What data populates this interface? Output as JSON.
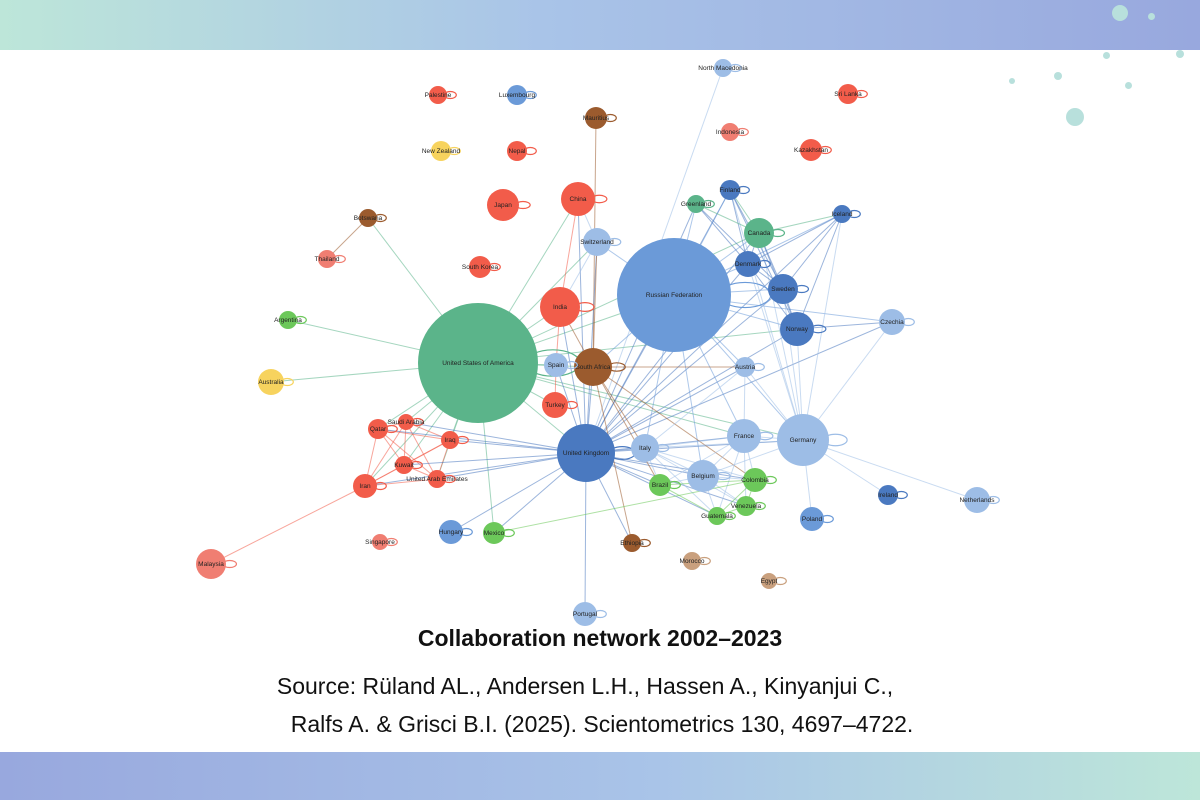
{
  "caption": {
    "title": "Collaboration network 2002–2023",
    "source_line1": "Source: Rüland AL., Andersen L.H., Hassen A., Kinyanjui C.,",
    "source_line2": "Ralfs A. & Grisci B.I. (2025). Scientometrics 130, 4697–4722."
  },
  "colors": {
    "red": "#f25c4a",
    "salmon": "#f07e72",
    "green": "#5bb48a",
    "lime": "#6cc85a",
    "brown": "#9b5b2e",
    "tan": "#c9a07e",
    "yellow": "#f7d35e",
    "blue_dark": "#4a79c0",
    "blue": "#6b9ad8",
    "blue_light": "#9dbde6",
    "band_top": [
      "#bde6d9",
      "#98a8de"
    ],
    "band_bottom": [
      "#98a8de",
      "#bde6d9"
    ]
  },
  "network": {
    "nodes": [
      {
        "id": "usa",
        "label": "United States of America",
        "color": "green"
      },
      {
        "id": "russia",
        "label": "Russian Federation",
        "color": "blue"
      },
      {
        "id": "uk",
        "label": "United Kingdom",
        "color": "blue_dark"
      },
      {
        "id": "germany",
        "label": "Germany",
        "color": "blue_light"
      },
      {
        "id": "southafrica",
        "label": "South Africa",
        "color": "brown"
      },
      {
        "id": "china",
        "label": "China",
        "color": "red"
      },
      {
        "id": "japan",
        "label": "Japan",
        "color": "red"
      },
      {
        "id": "india",
        "label": "India",
        "color": "red"
      },
      {
        "id": "norway",
        "label": "Norway",
        "color": "blue_dark"
      },
      {
        "id": "sweden",
        "label": "Sweden",
        "color": "blue_dark"
      },
      {
        "id": "canada",
        "label": "Canada",
        "color": "green"
      },
      {
        "id": "france",
        "label": "France",
        "color": "blue_light"
      },
      {
        "id": "belgium",
        "label": "Belgium",
        "color": "blue_light"
      },
      {
        "id": "italy",
        "label": "Italy",
        "color": "blue_light"
      },
      {
        "id": "spain",
        "label": "Spain",
        "color": "blue_light"
      },
      {
        "id": "turkey",
        "label": "Turkey",
        "color": "red"
      },
      {
        "id": "switzerland",
        "label": "Switzerland",
        "color": "blue_light"
      },
      {
        "id": "denmark",
        "label": "Denmark",
        "color": "blue_dark"
      },
      {
        "id": "finland",
        "label": "Finland",
        "color": "blue_dark"
      },
      {
        "id": "iceland",
        "label": "Iceland",
        "color": "blue_dark"
      },
      {
        "id": "greenland",
        "label": "Greenland",
        "color": "green"
      },
      {
        "id": "czechia",
        "label": "Czechia",
        "color": "blue_light"
      },
      {
        "id": "austria",
        "label": "Austria",
        "color": "blue_light"
      },
      {
        "id": "netherlands",
        "label": "Netherlands",
        "color": "blue_light"
      },
      {
        "id": "ireland",
        "label": "Ireland",
        "color": "blue_dark"
      },
      {
        "id": "poland",
        "label": "Poland",
        "color": "blue"
      },
      {
        "id": "colombia",
        "label": "Colombia",
        "color": "lime"
      },
      {
        "id": "brazil",
        "label": "Brazil",
        "color": "lime"
      },
      {
        "id": "venezuela",
        "label": "Venezuela",
        "color": "lime"
      },
      {
        "id": "guatemala",
        "label": "Guatemala",
        "color": "lime"
      },
      {
        "id": "mexico",
        "label": "Mexico",
        "color": "lime"
      },
      {
        "id": "argentina",
        "label": "Argentina",
        "color": "lime"
      },
      {
        "id": "hungary",
        "label": "Hungary",
        "color": "blue"
      },
      {
        "id": "ethiopia",
        "label": "Ethiopia",
        "color": "brown"
      },
      {
        "id": "morocco",
        "label": "Morocco",
        "color": "tan"
      },
      {
        "id": "egypt",
        "label": "Egypt",
        "color": "tan"
      },
      {
        "id": "portugal",
        "label": "Portugal",
        "color": "blue_light"
      },
      {
        "id": "iran",
        "label": "Iran",
        "color": "red"
      },
      {
        "id": "malaysia",
        "label": "Malaysia",
        "color": "salmon"
      },
      {
        "id": "singapore",
        "label": "Singapore",
        "color": "salmon"
      },
      {
        "id": "qatar",
        "label": "Qatar",
        "color": "red"
      },
      {
        "id": "saudiarabia",
        "label": "Saudi Arabia",
        "color": "red"
      },
      {
        "id": "iraq",
        "label": "Iraq",
        "color": "red"
      },
      {
        "id": "kuwait",
        "label": "Kuwait",
        "color": "red"
      },
      {
        "id": "uae",
        "label": "United Arab Emirates",
        "color": "red"
      },
      {
        "id": "australia",
        "label": "Australia",
        "color": "yellow"
      },
      {
        "id": "newzealand",
        "label": "New Zealand",
        "color": "yellow"
      },
      {
        "id": "thailand",
        "label": "Thailand",
        "color": "salmon"
      },
      {
        "id": "botswana",
        "label": "Botswana",
        "color": "brown"
      },
      {
        "id": "southkorea",
        "label": "South Korea",
        "color": "red"
      },
      {
        "id": "nepal",
        "label": "Nepal",
        "color": "red"
      },
      {
        "id": "palestine",
        "label": "Palestine",
        "color": "red"
      },
      {
        "id": "luxembourg",
        "label": "Luxembourg",
        "color": "blue"
      },
      {
        "id": "mauritius",
        "label": "Mauritius",
        "color": "brown"
      },
      {
        "id": "indonesia",
        "label": "Indonesia",
        "color": "salmon"
      },
      {
        "id": "northmacedonia",
        "label": "North Macedonia",
        "color": "blue_light"
      },
      {
        "id": "srilanka",
        "label": "Sri Lanka",
        "color": "red"
      },
      {
        "id": "kazakhstan",
        "label": "Kazakhstan",
        "color": "red"
      }
    ],
    "edges": [
      [
        "usa",
        "uk"
      ],
      [
        "usa",
        "russia"
      ],
      [
        "usa",
        "china"
      ],
      [
        "usa",
        "india"
      ],
      [
        "usa",
        "southafrica"
      ],
      [
        "usa",
        "spain"
      ],
      [
        "usa",
        "argentina"
      ],
      [
        "usa",
        "australia"
      ],
      [
        "usa",
        "botswana"
      ],
      [
        "usa",
        "mexico"
      ],
      [
        "usa",
        "iran"
      ],
      [
        "usa",
        "qatar"
      ],
      [
        "usa",
        "saudiarabia"
      ],
      [
        "usa",
        "iraq"
      ],
      [
        "usa",
        "kuwait"
      ],
      [
        "usa",
        "uae"
      ],
      [
        "usa",
        "turkey"
      ],
      [
        "usa",
        "switzerland"
      ],
      [
        "usa",
        "germany"
      ],
      [
        "usa",
        "canada"
      ],
      [
        "usa",
        "norway"
      ],
      [
        "usa",
        "france"
      ],
      [
        "botswana",
        "thailand"
      ],
      [
        "mauritius",
        "southafrica"
      ],
      [
        "northmacedonia",
        "uk"
      ],
      [
        "iran",
        "malaysia"
      ],
      [
        "iran",
        "qatar"
      ],
      [
        "iran",
        "saudiarabia"
      ],
      [
        "iran",
        "iraq"
      ],
      [
        "iran",
        "kuwait"
      ],
      [
        "iran",
        "uae"
      ],
      [
        "qatar",
        "saudiarabia"
      ],
      [
        "qatar",
        "iraq"
      ],
      [
        "qatar",
        "kuwait"
      ],
      [
        "qatar",
        "uae"
      ],
      [
        "saudiarabia",
        "kuwait"
      ],
      [
        "saudiarabia",
        "uae"
      ],
      [
        "saudiarabia",
        "iraq"
      ],
      [
        "iraq",
        "uae"
      ],
      [
        "kuwait",
        "uae"
      ],
      [
        "iraq",
        "kuwait"
      ],
      [
        "uk",
        "qatar"
      ],
      [
        "uk",
        "saudiarabia"
      ],
      [
        "uk",
        "iraq"
      ],
      [
        "uk",
        "kuwait"
      ],
      [
        "uk",
        "uae"
      ],
      [
        "uk",
        "iran"
      ],
      [
        "uk",
        "russia"
      ],
      [
        "uk",
        "southafrica"
      ],
      [
        "uk",
        "germany"
      ],
      [
        "uk",
        "france"
      ],
      [
        "uk",
        "italy"
      ],
      [
        "uk",
        "belgium"
      ],
      [
        "uk",
        "norway"
      ],
      [
        "uk",
        "sweden"
      ],
      [
        "uk",
        "denmark"
      ],
      [
        "uk",
        "canada"
      ],
      [
        "uk",
        "colombia"
      ],
      [
        "uk",
        "brazil"
      ],
      [
        "uk",
        "venezuela"
      ],
      [
        "uk",
        "guatemala"
      ],
      [
        "uk",
        "hungary"
      ],
      [
        "uk",
        "portugal"
      ],
      [
        "uk",
        "ethiopia"
      ],
      [
        "uk",
        "mexico"
      ],
      [
        "uk",
        "switzerland"
      ],
      [
        "uk",
        "spain"
      ],
      [
        "uk",
        "india"
      ],
      [
        "uk",
        "china"
      ],
      [
        "uk",
        "austria"
      ],
      [
        "uk",
        "finland"
      ],
      [
        "uk",
        "iceland"
      ],
      [
        "uk",
        "greenland"
      ],
      [
        "uk",
        "czechia"
      ],
      [
        "russia",
        "germany"
      ],
      [
        "russia",
        "norway"
      ],
      [
        "russia",
        "sweden"
      ],
      [
        "russia",
        "denmark"
      ],
      [
        "russia",
        "canada"
      ],
      [
        "russia",
        "finland"
      ],
      [
        "russia",
        "iceland"
      ],
      [
        "russia",
        "greenland"
      ],
      [
        "russia",
        "switzerland"
      ],
      [
        "russia",
        "france"
      ],
      [
        "russia",
        "austria"
      ],
      [
        "russia",
        "czechia"
      ],
      [
        "russia",
        "southafrica"
      ],
      [
        "russia",
        "italy"
      ],
      [
        "russia",
        "belgium"
      ],
      [
        "southafrica",
        "brazil"
      ],
      [
        "southafrica",
        "colombia"
      ],
      [
        "southafrica",
        "ethiopia"
      ],
      [
        "southafrica",
        "italy"
      ],
      [
        "southafrica",
        "austria"
      ],
      [
        "southafrica",
        "switzerland"
      ],
      [
        "southafrica",
        "india"
      ],
      [
        "germany",
        "netherlands"
      ],
      [
        "germany",
        "ireland"
      ],
      [
        "germany",
        "poland"
      ],
      [
        "germany",
        "france"
      ],
      [
        "germany",
        "norway"
      ],
      [
        "germany",
        "sweden"
      ],
      [
        "germany",
        "italy"
      ],
      [
        "germany",
        "belgium"
      ],
      [
        "germany",
        "czechia"
      ],
      [
        "germany",
        "iceland"
      ],
      [
        "germany",
        "finland"
      ],
      [
        "germany",
        "canada"
      ],
      [
        "germany",
        "austria"
      ],
      [
        "germany",
        "denmark"
      ],
      [
        "italy",
        "brazil"
      ],
      [
        "italy",
        "colombia"
      ],
      [
        "italy",
        "venezuela"
      ],
      [
        "italy",
        "guatemala"
      ],
      [
        "italy",
        "belgium"
      ],
      [
        "italy",
        "france"
      ],
      [
        "belgium",
        "colombia"
      ],
      [
        "belgium",
        "brazil"
      ],
      [
        "belgium",
        "venezuela"
      ],
      [
        "belgium",
        "guatemala"
      ],
      [
        "france",
        "colombia"
      ],
      [
        "france",
        "venezuela"
      ],
      [
        "france",
        "guatemala"
      ],
      [
        "france",
        "brazil"
      ],
      [
        "france",
        "belgium"
      ],
      [
        "norway",
        "sweden"
      ],
      [
        "norway",
        "denmark"
      ],
      [
        "norway",
        "iceland"
      ],
      [
        "norway",
        "finland"
      ],
      [
        "norway",
        "canada"
      ],
      [
        "norway",
        "czechia"
      ],
      [
        "sweden",
        "denmark"
      ],
      [
        "sweden",
        "finland"
      ],
      [
        "sweden",
        "iceland"
      ],
      [
        "sweden",
        "canada"
      ],
      [
        "sweden",
        "greenland"
      ],
      [
        "denmark",
        "canada"
      ],
      [
        "denmark",
        "greenland"
      ],
      [
        "denmark",
        "finland"
      ],
      [
        "denmark",
        "iceland"
      ],
      [
        "canada",
        "greenland"
      ],
      [
        "canada",
        "finland"
      ],
      [
        "canada",
        "iceland"
      ],
      [
        "switzerland",
        "china"
      ],
      [
        "switzerland",
        "india"
      ],
      [
        "china",
        "india"
      ],
      [
        "turkey",
        "spain"
      ],
      [
        "india",
        "spain"
      ],
      [
        "colombia",
        "brazil"
      ],
      [
        "colombia",
        "venezuela"
      ],
      [
        "colombia",
        "guatemala"
      ],
      [
        "brazil",
        "guatemala"
      ],
      [
        "venezuela",
        "guatemala"
      ],
      [
        "mexico",
        "colombia"
      ],
      [
        "austria",
        "italy"
      ],
      [
        "austria",
        "france"
      ]
    ]
  }
}
